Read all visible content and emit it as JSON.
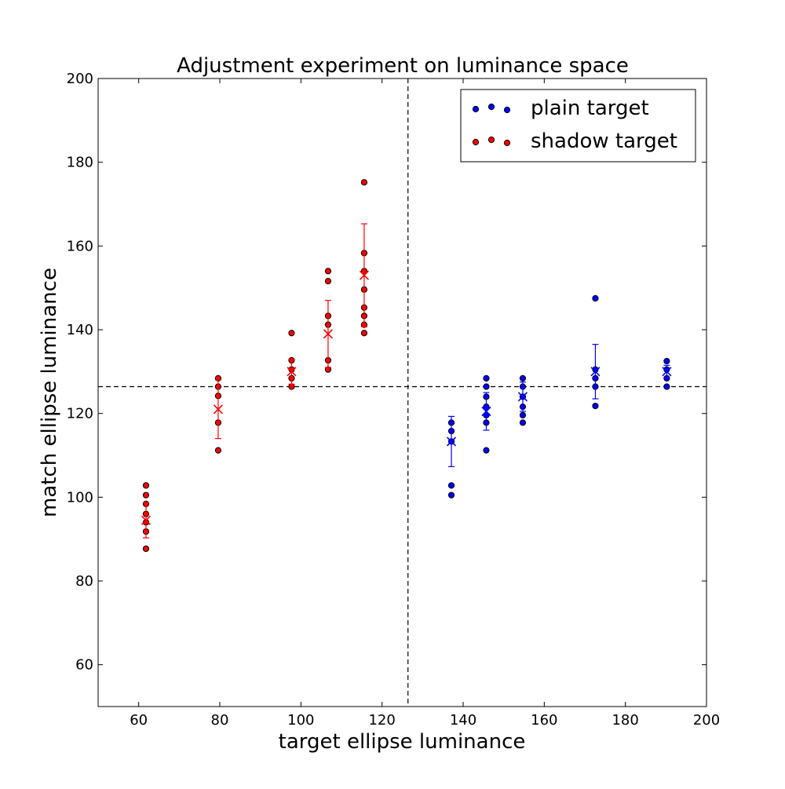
{
  "chart_data": {
    "type": "scatter",
    "title": "Adjustment experiment on luminance space",
    "xlabel": "target ellipse luminance",
    "ylabel": "match ellipse luminance",
    "xlim": [
      50,
      200
    ],
    "ylim": [
      50,
      200
    ],
    "xticks": [
      60,
      80,
      100,
      120,
      140,
      160,
      180,
      200
    ],
    "yticks": [
      60,
      80,
      100,
      120,
      140,
      160,
      180,
      200
    ],
    "grid": false,
    "legend_position": "top-right",
    "reference_lines": {
      "vertical_x": 126.4,
      "horizontal_y": 126.4,
      "style": "dashed"
    },
    "series": [
      {
        "name": "plain target",
        "color": "#0000ff",
        "points": [
          {
            "x": 137.1,
            "y": 117.8
          },
          {
            "x": 137.1,
            "y": 115.8
          },
          {
            "x": 137.1,
            "y": 113.3
          },
          {
            "x": 137.1,
            "y": 102.8
          },
          {
            "x": 137.1,
            "y": 100.5
          },
          {
            "x": 145.7,
            "y": 128.4
          },
          {
            "x": 145.7,
            "y": 126.4
          },
          {
            "x": 145.7,
            "y": 124.0
          },
          {
            "x": 145.7,
            "y": 121.6
          },
          {
            "x": 145.7,
            "y": 119.6
          },
          {
            "x": 145.7,
            "y": 117.8
          },
          {
            "x": 145.7,
            "y": 111.2
          },
          {
            "x": 154.7,
            "y": 128.4
          },
          {
            "x": 154.7,
            "y": 126.4
          },
          {
            "x": 154.7,
            "y": 124.0
          },
          {
            "x": 154.7,
            "y": 121.6
          },
          {
            "x": 154.7,
            "y": 119.6
          },
          {
            "x": 154.7,
            "y": 117.8
          },
          {
            "x": 172.6,
            "y": 147.5
          },
          {
            "x": 172.6,
            "y": 130.5
          },
          {
            "x": 172.6,
            "y": 128.4
          },
          {
            "x": 172.6,
            "y": 126.4
          },
          {
            "x": 172.6,
            "y": 121.8
          },
          {
            "x": 190.2,
            "y": 132.5
          },
          {
            "x": 190.2,
            "y": 130.5
          },
          {
            "x": 190.2,
            "y": 128.4
          },
          {
            "x": 190.2,
            "y": 126.4
          }
        ],
        "means": [
          {
            "x": 137.1,
            "y": 113.3,
            "err": 6.0
          },
          {
            "x": 145.7,
            "y": 120.5,
            "err": 4.5
          },
          {
            "x": 154.7,
            "y": 124.0,
            "err": 3.5
          },
          {
            "x": 172.6,
            "y": 130.0,
            "err": 6.5
          },
          {
            "x": 190.2,
            "y": 130.0,
            "err": 1.5
          }
        ]
      },
      {
        "name": "shadow target",
        "color": "#ff0000",
        "points": [
          {
            "x": 61.8,
            "y": 102.8
          },
          {
            "x": 61.8,
            "y": 100.5
          },
          {
            "x": 61.8,
            "y": 98.4
          },
          {
            "x": 61.8,
            "y": 96.0
          },
          {
            "x": 61.8,
            "y": 94.0
          },
          {
            "x": 61.8,
            "y": 91.8
          },
          {
            "x": 61.8,
            "y": 87.7
          },
          {
            "x": 79.6,
            "y": 128.4
          },
          {
            "x": 79.6,
            "y": 126.4
          },
          {
            "x": 79.6,
            "y": 124.2
          },
          {
            "x": 79.6,
            "y": 117.8
          },
          {
            "x": 79.6,
            "y": 111.2
          },
          {
            "x": 97.7,
            "y": 139.2
          },
          {
            "x": 97.7,
            "y": 132.7
          },
          {
            "x": 97.7,
            "y": 130.5
          },
          {
            "x": 97.7,
            "y": 128.4
          },
          {
            "x": 97.7,
            "y": 126.4
          },
          {
            "x": 106.7,
            "y": 154.0
          },
          {
            "x": 106.7,
            "y": 151.6
          },
          {
            "x": 106.7,
            "y": 143.3
          },
          {
            "x": 106.7,
            "y": 141.2
          },
          {
            "x": 106.7,
            "y": 132.7
          },
          {
            "x": 106.7,
            "y": 130.5
          },
          {
            "x": 115.6,
            "y": 175.2
          },
          {
            "x": 115.6,
            "y": 158.3
          },
          {
            "x": 115.6,
            "y": 154.0
          },
          {
            "x": 115.6,
            "y": 149.6
          },
          {
            "x": 115.6,
            "y": 145.3
          },
          {
            "x": 115.6,
            "y": 143.3
          },
          {
            "x": 115.6,
            "y": 141.2
          },
          {
            "x": 115.6,
            "y": 139.2
          }
        ],
        "means": [
          {
            "x": 61.8,
            "y": 94.5,
            "err": 4.2
          },
          {
            "x": 79.6,
            "y": 121.0,
            "err": 7.0
          },
          {
            "x": 97.7,
            "y": 130.0,
            "err": 3.0
          },
          {
            "x": 106.7,
            "y": 139.0,
            "err": 8.0
          },
          {
            "x": 115.6,
            "y": 153.0,
            "err": 12.3
          }
        ]
      }
    ]
  }
}
